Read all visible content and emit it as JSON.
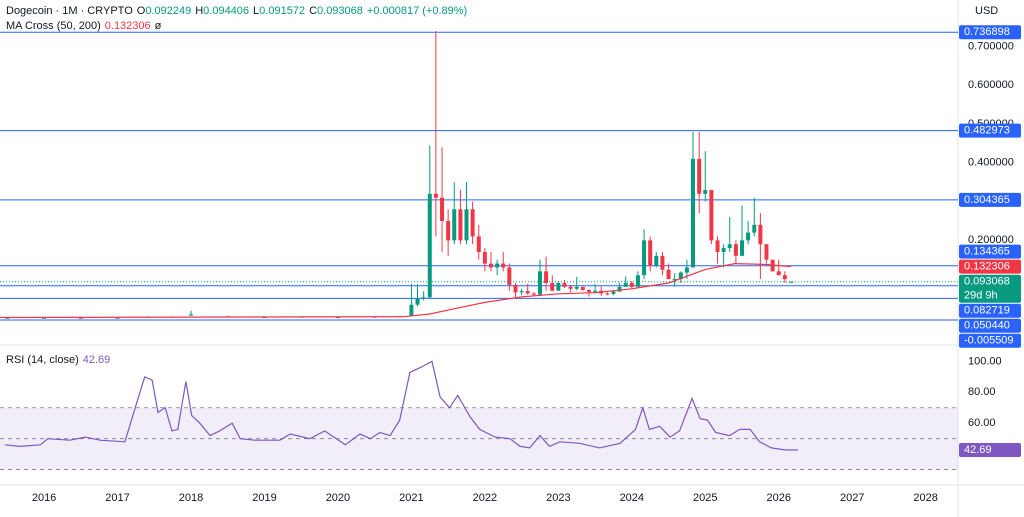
{
  "chart_data": [
    {
      "type": "candlestick",
      "title": "Dogecoin · 1M · CRYPTO",
      "ohlc_labels": [
        "O",
        "H",
        "L",
        "C"
      ],
      "change": "+0.000817 (+0.89%)",
      "currency": "USD",
      "up_color": "#089981",
      "down_color": "#f23645",
      "x": [
        2015.5,
        2016.0,
        2016.5,
        2017.0,
        2017.42,
        2017.75,
        2018.0,
        2018.5,
        2019.0,
        2019.5,
        2020.0,
        2020.5,
        2020.83,
        2021,
        2021.083,
        2021.167,
        2021.25,
        2021.333,
        2021.417,
        2021.5,
        2021.583,
        2021.667,
        2021.75,
        2021.833,
        2021.917,
        2022,
        2022.083,
        2022.167,
        2022.25,
        2022.333,
        2022.417,
        2022.5,
        2022.583,
        2022.667,
        2022.75,
        2022.833,
        2022.917,
        2023,
        2023.083,
        2023.167,
        2023.25,
        2023.333,
        2023.417,
        2023.5,
        2023.583,
        2023.667,
        2023.75,
        2023.833,
        2023.917,
        2024,
        2024.083,
        2024.167,
        2024.25,
        2024.333,
        2024.417,
        2024.5,
        2024.583,
        2024.667,
        2024.75,
        2024.833,
        2024.917,
        2025,
        2025.083,
        2025.167,
        2025.25,
        2025.333,
        2025.417,
        2025.5,
        2025.583,
        2025.667,
        2025.75,
        2025.833,
        2025.917,
        2026,
        2026.083,
        2026.167
      ],
      "open": [
        0.0002,
        0.0002,
        0.0003,
        0.0002,
        0.0004,
        0.003,
        0.006,
        0.004,
        0.002,
        0.003,
        0.002,
        0.002,
        0.0027,
        0.0047,
        0.034,
        0.051,
        0.053,
        0.32,
        0.31,
        0.25,
        0.2,
        0.28,
        0.2,
        0.28,
        0.21,
        0.17,
        0.14,
        0.13,
        0.14,
        0.13,
        0.085,
        0.066,
        0.069,
        0.063,
        0.06,
        0.12,
        0.09,
        0.07,
        0.09,
        0.08,
        0.075,
        0.08,
        0.072,
        0.067,
        0.07,
        0.063,
        0.062,
        0.068,
        0.08,
        0.09,
        0.08,
        0.11,
        0.2,
        0.135,
        0.16,
        0.124,
        0.1,
        0.1,
        0.117,
        0.13,
        0.41,
        0.32,
        0.33,
        0.2,
        0.17,
        0.18,
        0.19,
        0.16,
        0.2,
        0.22,
        0.24,
        0.19,
        0.15,
        0.12,
        0.11,
        0.092249
      ],
      "high": [
        0.0003,
        0.0003,
        0.0004,
        0.0005,
        0.0035,
        0.004,
        0.019,
        0.006,
        0.003,
        0.004,
        0.003,
        0.003,
        0.0048,
        0.087,
        0.087,
        0.069,
        0.445,
        0.74,
        0.44,
        0.28,
        0.35,
        0.33,
        0.35,
        0.3,
        0.24,
        0.18,
        0.17,
        0.15,
        0.17,
        0.14,
        0.09,
        0.075,
        0.088,
        0.066,
        0.15,
        0.158,
        0.11,
        0.095,
        0.098,
        0.085,
        0.106,
        0.08,
        0.073,
        0.087,
        0.081,
        0.066,
        0.07,
        0.09,
        0.107,
        0.095,
        0.12,
        0.228,
        0.21,
        0.17,
        0.17,
        0.14,
        0.115,
        0.12,
        0.15,
        0.48,
        0.48,
        0.43,
        0.33,
        0.21,
        0.19,
        0.26,
        0.2,
        0.29,
        0.25,
        0.31,
        0.27,
        0.19,
        0.15,
        0.15,
        0.12,
        0.094406
      ],
      "low": [
        0.0001,
        0.0002,
        0.0002,
        0.0002,
        0.0004,
        0.001,
        0.005,
        0.003,
        0.002,
        0.002,
        0.002,
        0.002,
        0.0025,
        0.0047,
        0.03,
        0.045,
        0.051,
        0.21,
        0.17,
        0.16,
        0.19,
        0.19,
        0.19,
        0.19,
        0.15,
        0.12,
        0.12,
        0.11,
        0.12,
        0.07,
        0.05,
        0.058,
        0.06,
        0.057,
        0.057,
        0.07,
        0.069,
        0.07,
        0.077,
        0.066,
        0.071,
        0.07,
        0.055,
        0.063,
        0.057,
        0.058,
        0.058,
        0.067,
        0.08,
        0.076,
        0.08,
        0.1,
        0.12,
        0.13,
        0.11,
        0.1,
        0.08,
        0.09,
        0.1,
        0.13,
        0.27,
        0.3,
        0.19,
        0.14,
        0.13,
        0.17,
        0.14,
        0.16,
        0.19,
        0.21,
        0.1,
        0.14,
        0.12,
        0.11,
        0.09,
        0.091572
      ],
      "close": [
        0.0002,
        0.0003,
        0.0002,
        0.0004,
        0.003,
        0.002,
        0.009,
        0.003,
        0.002,
        0.003,
        0.002,
        0.003,
        0.0047,
        0.034,
        0.051,
        0.053,
        0.32,
        0.31,
        0.25,
        0.2,
        0.28,
        0.2,
        0.28,
        0.21,
        0.17,
        0.14,
        0.13,
        0.14,
        0.13,
        0.085,
        0.066,
        0.069,
        0.063,
        0.06,
        0.12,
        0.09,
        0.07,
        0.09,
        0.08,
        0.075,
        0.08,
        0.072,
        0.067,
        0.07,
        0.063,
        0.062,
        0.068,
        0.08,
        0.09,
        0.08,
        0.11,
        0.2,
        0.135,
        0.16,
        0.124,
        0.1,
        0.1,
        0.117,
        0.13,
        0.41,
        0.32,
        0.33,
        0.2,
        0.17,
        0.18,
        0.19,
        0.16,
        0.2,
        0.22,
        0.24,
        0.19,
        0.15,
        0.12,
        0.11,
        0.1,
        0.093068
      ],
      "countdown": "29d 9h",
      "ma": {
        "name": "MA Cross (50, 200)",
        "symbol": "ø",
        "color": "#f23645",
        "x": [
          2015.4,
          2020.9,
          2021.25,
          2021.5,
          2022.0,
          2022.5,
          2023.0,
          2023.5,
          2024.0,
          2024.5,
          2025.0,
          2025.4,
          2025.8,
          2026.167
        ],
        "values": [
          0.001,
          0.003,
          0.01,
          0.02,
          0.04,
          0.054,
          0.062,
          0.065,
          0.075,
          0.09,
          0.125,
          0.14,
          0.138,
          0.132306
        ]
      },
      "levels": [
        0.736898,
        0.482973,
        0.304365,
        0.134365,
        0.082719,
        {
          "value": 0.05044,
          "label": "0.050440"
        },
        -0.005509
      ],
      "level_color": "#2962ff",
      "xlim": [
        2015.4,
        2028.44
      ],
      "xticks": [
        2016,
        2017,
        2018,
        2019,
        2020,
        2021,
        2022,
        2023,
        2024,
        2025,
        2026,
        2027,
        2028
      ],
      "ylim": [
        -0.07,
        0.82
      ],
      "yticks": [
        {
          "value": 0.7,
          "label": "0.700000"
        },
        {
          "value": 0.6,
          "label": "0.600000"
        },
        {
          "value": 0.5,
          "label": "0.500000"
        },
        {
          "value": 0.4,
          "label": "0.400000"
        },
        {
          "value": 0.2,
          "label": "0.200000"
        }
      ]
    },
    {
      "type": "line",
      "title": "RSI (14, close)",
      "color": "#7e57c2",
      "x": [
        2015.47,
        2015.67,
        2015.95,
        2016.05,
        2016.35,
        2016.56,
        2016.76,
        2017.1,
        2017.24,
        2017.37,
        2017.47,
        2017.55,
        2017.65,
        2017.74,
        2017.82,
        2017.93,
        2018.01,
        2018.12,
        2018.26,
        2018.39,
        2018.56,
        2018.67,
        2018.87,
        2019.21,
        2019.35,
        2019.62,
        2019.82,
        2020.1,
        2020.3,
        2020.44,
        2020.57,
        2020.71,
        2020.84,
        2020.98,
        2021.12,
        2021.28,
        2021.39,
        2021.52,
        2021.63,
        2021.8,
        2021.93,
        2022.14,
        2022.34,
        2022.48,
        2022.61,
        2022.75,
        2022.88,
        2023.02,
        2023.29,
        2023.56,
        2023.84,
        2024.05,
        2024.15,
        2024.24,
        2024.38,
        2024.52,
        2024.65,
        2024.82,
        2024.93,
        2025.03,
        2025.14,
        2025.33,
        2025.47,
        2025.61,
        2025.74,
        2025.9,
        2026.08,
        2026.26
      ],
      "values": [
        46,
        45,
        46,
        50,
        49,
        51,
        49,
        48,
        70,
        90,
        88,
        67,
        70,
        55,
        56,
        87,
        65,
        60,
        52,
        55,
        60,
        50,
        49,
        49,
        53,
        50,
        55,
        46,
        53,
        50,
        54,
        52,
        62,
        93,
        96,
        100,
        77,
        70,
        78,
        64,
        56,
        51,
        50,
        45,
        44,
        52,
        45,
        48,
        47,
        44,
        47,
        56,
        70,
        56,
        58,
        51,
        55,
        76,
        63,
        62,
        54,
        52,
        56,
        56,
        48,
        44,
        42.7,
        42.69
      ],
      "band": [
        30,
        70
      ],
      "levels": [
        30,
        50,
        70
      ],
      "ylim": [
        20,
        110
      ],
      "yticks": [
        {
          "value": 100,
          "label": "100.00"
        },
        {
          "value": 80,
          "label": "80.00"
        },
        {
          "value": 60,
          "label": "60.00"
        }
      ]
    }
  ]
}
